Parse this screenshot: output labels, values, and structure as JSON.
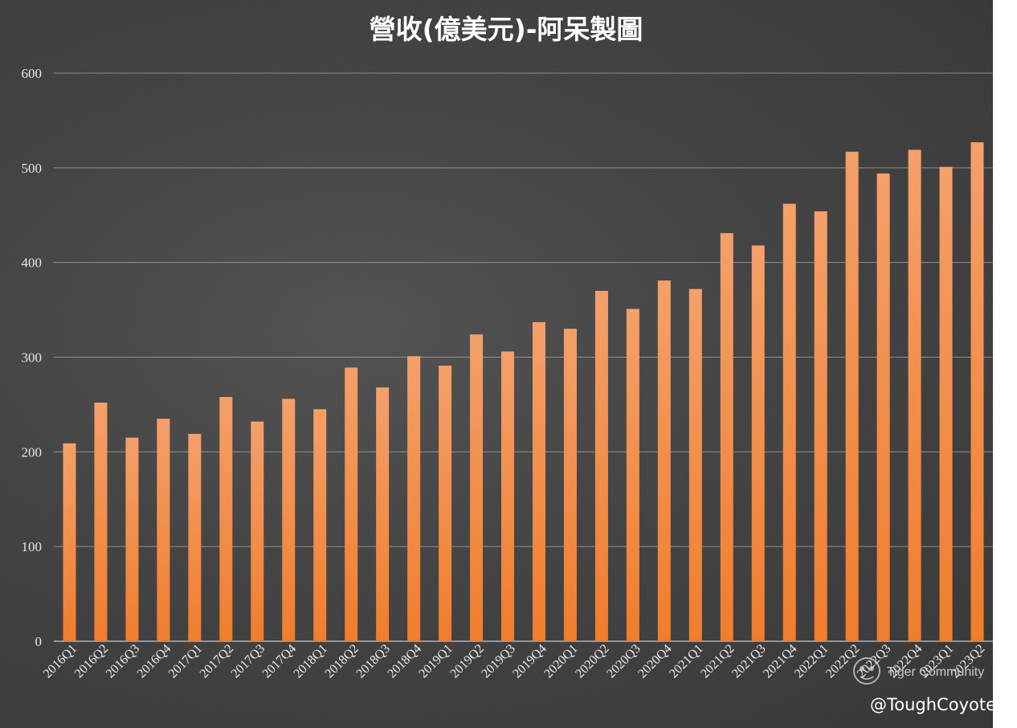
{
  "chart_data": {
    "type": "bar",
    "title": "營收(億美元)-阿呆製圖",
    "xlabel": "",
    "ylabel": "",
    "ylim": [
      0,
      600
    ],
    "yticks": [
      0,
      100,
      200,
      300,
      400,
      500,
      600
    ],
    "grid": true,
    "categories": [
      "2016Q1",
      "2016Q2",
      "2016Q3",
      "2016Q4",
      "2017Q1",
      "2017Q2",
      "2017Q3",
      "2017Q4",
      "2018Q1",
      "2018Q2",
      "2018Q3",
      "2018Q4",
      "2019Q1",
      "2019Q2",
      "2019Q3",
      "2019Q4",
      "2020Q1",
      "2020Q2",
      "2020Q3",
      "2020Q4",
      "2021Q1",
      "2021Q2",
      "2021Q3",
      "2021Q4",
      "2022Q1",
      "2022Q2",
      "2022Q3",
      "2022Q4",
      "2023Q1",
      "2023Q2"
    ],
    "values": [
      209,
      252,
      215,
      235,
      219,
      258,
      232,
      256,
      245,
      289,
      268,
      301,
      291,
      324,
      306,
      337,
      330,
      370,
      351,
      381,
      372,
      431,
      418,
      462,
      454,
      517,
      494,
      519,
      501,
      527
    ],
    "bar_color": "#f07d2c",
    "bar_color_light": "#f4a06a"
  },
  "watermark": {
    "community": "Tiger Community",
    "handle": "@ToughCoyote"
  }
}
